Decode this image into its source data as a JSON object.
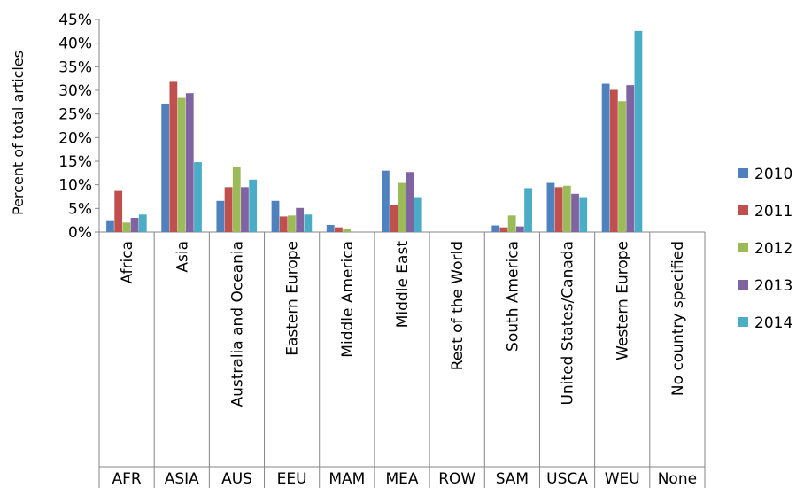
{
  "chart_data": {
    "type": "bar",
    "ylabel": "Percent of total articles",
    "ylim": [
      0,
      45
    ],
    "y_ticks": [
      "0%",
      "5%",
      "10%",
      "15%",
      "20%",
      "25%",
      "30%",
      "35%",
      "40%",
      "45%"
    ],
    "categories": [
      "Africa",
      "Asia",
      "Australia and Oceania",
      "Eastern Europe",
      "Middle America",
      "Middle East",
      "Rest of the World",
      "South America",
      "United States/Canada",
      "Western Europe",
      "No country specified"
    ],
    "codes": [
      "AFR",
      "ASIA",
      "AUS",
      "EEU",
      "MAM",
      "MEA",
      "ROW",
      "SAM",
      "USCA",
      "WEU",
      "None"
    ],
    "series": [
      {
        "name": "2010",
        "color": "#4f81bd",
        "values": [
          2.5,
          27.2,
          6.6,
          6.6,
          1.5,
          13.0,
          0,
          1.4,
          10.4,
          31.4,
          0
        ]
      },
      {
        "name": "2011",
        "color": "#c0504d",
        "values": [
          8.7,
          31.8,
          9.5,
          3.3,
          1.0,
          5.7,
          0,
          1.0,
          9.5,
          30.1,
          0
        ]
      },
      {
        "name": "2012",
        "color": "#9bbb59",
        "values": [
          2.0,
          28.4,
          13.7,
          3.5,
          0.7,
          10.4,
          0,
          3.5,
          9.8,
          27.7,
          0
        ]
      },
      {
        "name": "2013",
        "color": "#8064a2",
        "values": [
          3.0,
          29.4,
          9.5,
          5.1,
          0,
          12.7,
          0,
          1.2,
          8.1,
          31.1,
          0
        ]
      },
      {
        "name": "2014",
        "color": "#4bacc6",
        "values": [
          3.7,
          14.8,
          11.1,
          3.7,
          0,
          7.4,
          0,
          9.3,
          7.4,
          42.6,
          0
        ]
      }
    ],
    "legend_position": "right",
    "grid": false
  }
}
